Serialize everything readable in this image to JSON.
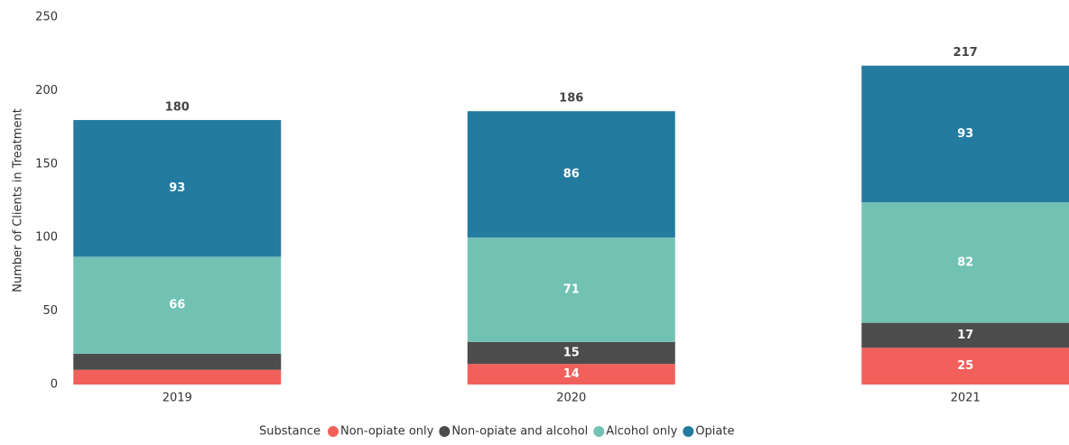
{
  "chart_data": {
    "type": "stacked_bar",
    "y_label": "Number of Clients in Treatment",
    "categories": [
      "2019",
      "2020",
      "2021"
    ],
    "series": [
      {
        "name": "Non-opiate only",
        "color": "#f2605c",
        "values": [
          10,
          14,
          25
        ]
      },
      {
        "name": "Non-opiate and alcohol",
        "color": "#4c4c4c",
        "values": [
          11,
          15,
          17
        ]
      },
      {
        "name": "Alcohol only",
        "color": "#72c2b4",
        "values": [
          66,
          71,
          82
        ]
      },
      {
        "name": "Opiate",
        "color": "#237ba0",
        "values": [
          93,
          86,
          93
        ]
      }
    ],
    "totals": [
      180,
      186,
      217
    ],
    "legend_title": "Substance",
    "legend_position": "bottom",
    "ylim": [
      0,
      250
    ],
    "yticks": [
      0,
      50,
      100,
      150,
      200,
      250
    ],
    "grid": false
  }
}
